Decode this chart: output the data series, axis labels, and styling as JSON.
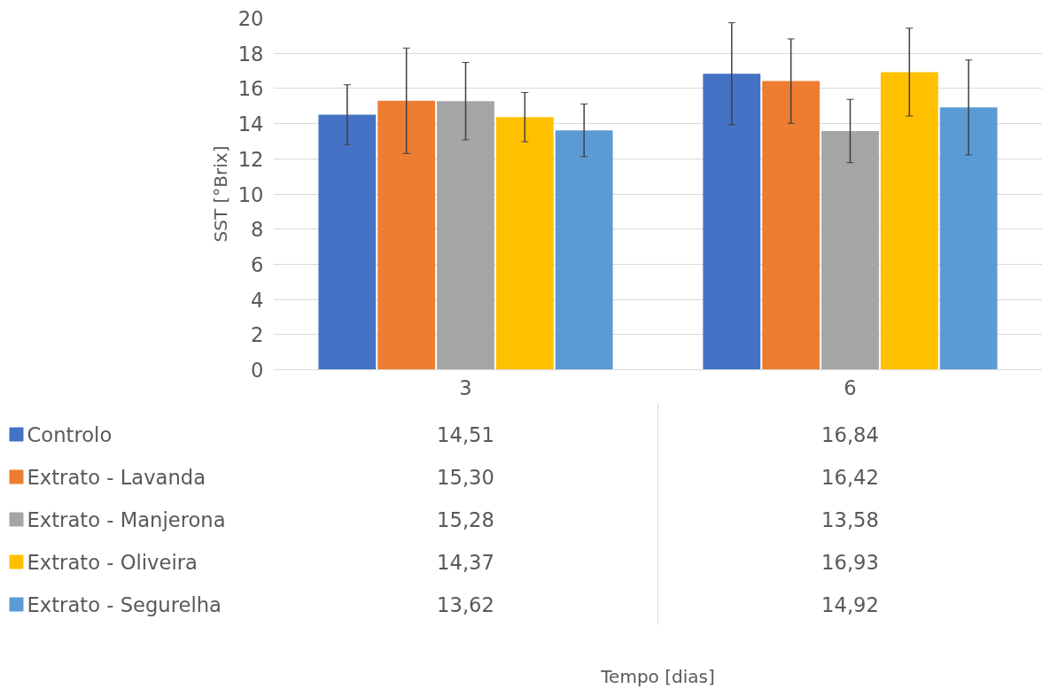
{
  "chart_data": {
    "type": "bar",
    "annotations": [
      "Tempo [dias]"
    ],
    "ylabel": "SST [°Brix]",
    "categories": [
      "3",
      "6"
    ],
    "ylim": [
      0,
      20
    ],
    "yticks": [
      0,
      2,
      4,
      6,
      8,
      10,
      12,
      14,
      16,
      18,
      20
    ],
    "grid": "y",
    "legend": "bottom",
    "series": [
      {
        "name": "Controlo",
        "color": "#4472c4",
        "values": [
          14.51,
          16.84
        ],
        "errors": [
          1.7,
          2.9
        ],
        "value_labels": [
          "14,51",
          "16,84"
        ]
      },
      {
        "name": "Extrato - Lavanda",
        "color": "#ed7d31",
        "values": [
          15.3,
          16.42
        ],
        "errors": [
          3.0,
          2.4
        ],
        "value_labels": [
          "15,30",
          "16,42"
        ]
      },
      {
        "name": "Extrato - Manjerona",
        "color": "#a5a5a5",
        "values": [
          15.28,
          13.58
        ],
        "errors": [
          2.2,
          1.8
        ],
        "value_labels": [
          "15,28",
          "13,58"
        ]
      },
      {
        "name": "Extrato - Oliveira",
        "color": "#ffc000",
        "values": [
          14.37,
          16.93
        ],
        "errors": [
          1.4,
          2.5
        ],
        "value_labels": [
          "14,37",
          "16,93"
        ]
      },
      {
        "name": "Extrato - Segurelha",
        "color": "#5b9bd5",
        "values": [
          13.62,
          14.92
        ],
        "errors": [
          1.5,
          2.7
        ],
        "value_labels": [
          "13,62",
          "14,92"
        ]
      }
    ]
  }
}
